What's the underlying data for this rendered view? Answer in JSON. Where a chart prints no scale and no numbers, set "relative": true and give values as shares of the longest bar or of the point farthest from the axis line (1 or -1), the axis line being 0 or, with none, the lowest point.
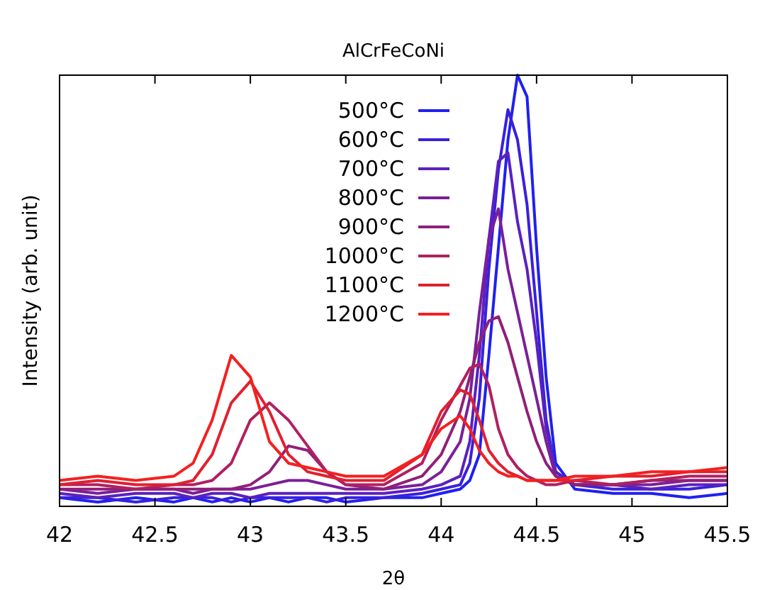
{
  "chart_data": {
    "type": "line",
    "title": "AlCrFeCoNi",
    "xlabel": "2θ",
    "ylabel": "Intensity (arb. unit)",
    "relative": true,
    "xlim": [
      42,
      45.5
    ],
    "xticks": [
      42,
      42.5,
      43,
      43.5,
      44,
      44.5,
      45,
      45.5
    ],
    "legend": "top",
    "grid": false,
    "marker": "none",
    "line_style": "solid",
    "x": [
      42,
      42.2,
      42.4,
      42.6,
      42.7,
      42.8,
      42.9,
      43.0,
      43.1,
      43.2,
      43.3,
      43.4,
      43.5,
      43.7,
      43.9,
      44.0,
      44.1,
      44.15,
      44.2,
      44.25,
      44.3,
      44.35,
      44.4,
      44.45,
      44.5,
      44.55,
      44.6,
      44.7,
      44.9,
      45.1,
      45.3,
      45.5
    ],
    "series": [
      {
        "name": "500°C",
        "color": "#2020f0",
        "values": [
          0.02,
          0.01,
          0.02,
          0.01,
          0.02,
          0.01,
          0.02,
          0.01,
          0.02,
          0.01,
          0.02,
          0.02,
          0.01,
          0.02,
          0.02,
          0.03,
          0.04,
          0.06,
          0.12,
          0.35,
          0.6,
          0.85,
          1.0,
          0.95,
          0.6,
          0.3,
          0.1,
          0.04,
          0.03,
          0.03,
          0.02,
          0.03
        ]
      },
      {
        "name": "600°C",
        "color": "#3a20dc",
        "values": [
          0.02,
          0.02,
          0.01,
          0.02,
          0.02,
          0.02,
          0.01,
          0.02,
          0.02,
          0.02,
          0.02,
          0.01,
          0.02,
          0.02,
          0.03,
          0.04,
          0.05,
          0.1,
          0.25,
          0.55,
          0.78,
          0.92,
          0.85,
          0.7,
          0.45,
          0.2,
          0.08,
          0.05,
          0.04,
          0.04,
          0.04,
          0.05
        ]
      },
      {
        "name": "700°C",
        "color": "#5a20c0",
        "values": [
          0.03,
          0.02,
          0.03,
          0.03,
          0.02,
          0.03,
          0.03,
          0.02,
          0.03,
          0.03,
          0.03,
          0.03,
          0.03,
          0.03,
          0.04,
          0.05,
          0.07,
          0.15,
          0.35,
          0.62,
          0.8,
          0.82,
          0.66,
          0.55,
          0.38,
          0.18,
          0.08,
          0.05,
          0.05,
          0.04,
          0.05,
          0.05
        ]
      },
      {
        "name": "800°C",
        "color": "#7a2098",
        "values": [
          0.04,
          0.03,
          0.04,
          0.04,
          0.03,
          0.04,
          0.04,
          0.04,
          0.05,
          0.06,
          0.06,
          0.05,
          0.04,
          0.04,
          0.05,
          0.08,
          0.15,
          0.25,
          0.45,
          0.62,
          0.69,
          0.55,
          0.45,
          0.35,
          0.25,
          0.15,
          0.07,
          0.05,
          0.05,
          0.05,
          0.06,
          0.06
        ]
      },
      {
        "name": "900°C",
        "color": "#902078",
        "values": [
          0.04,
          0.04,
          0.04,
          0.04,
          0.04,
          0.04,
          0.04,
          0.05,
          0.08,
          0.14,
          0.13,
          0.08,
          0.05,
          0.04,
          0.07,
          0.12,
          0.22,
          0.3,
          0.38,
          0.43,
          0.44,
          0.38,
          0.3,
          0.22,
          0.15,
          0.1,
          0.07,
          0.05,
          0.05,
          0.06,
          0.06,
          0.06
        ]
      },
      {
        "name": "1000°C",
        "color": "#b02060",
        "values": [
          0.05,
          0.05,
          0.04,
          0.05,
          0.05,
          0.06,
          0.1,
          0.2,
          0.24,
          0.2,
          0.14,
          0.08,
          0.05,
          0.05,
          0.1,
          0.2,
          0.28,
          0.32,
          0.33,
          0.28,
          0.18,
          0.12,
          0.09,
          0.07,
          0.06,
          0.05,
          0.05,
          0.06,
          0.05,
          0.06,
          0.07,
          0.07
        ]
      },
      {
        "name": "1100°C",
        "color": "#e02030",
        "values": [
          0.05,
          0.06,
          0.05,
          0.05,
          0.06,
          0.12,
          0.24,
          0.29,
          0.22,
          0.12,
          0.08,
          0.07,
          0.06,
          0.06,
          0.12,
          0.22,
          0.27,
          0.26,
          0.2,
          0.13,
          0.1,
          0.08,
          0.07,
          0.06,
          0.06,
          0.06,
          0.06,
          0.06,
          0.07,
          0.07,
          0.08,
          0.08
        ]
      },
      {
        "name": "1200°C",
        "color": "#f42020",
        "values": [
          0.06,
          0.07,
          0.06,
          0.07,
          0.1,
          0.2,
          0.35,
          0.3,
          0.15,
          0.1,
          0.09,
          0.08,
          0.07,
          0.07,
          0.12,
          0.18,
          0.21,
          0.18,
          0.13,
          0.1,
          0.08,
          0.07,
          0.07,
          0.06,
          0.06,
          0.06,
          0.06,
          0.07,
          0.07,
          0.08,
          0.08,
          0.09
        ]
      }
    ]
  }
}
